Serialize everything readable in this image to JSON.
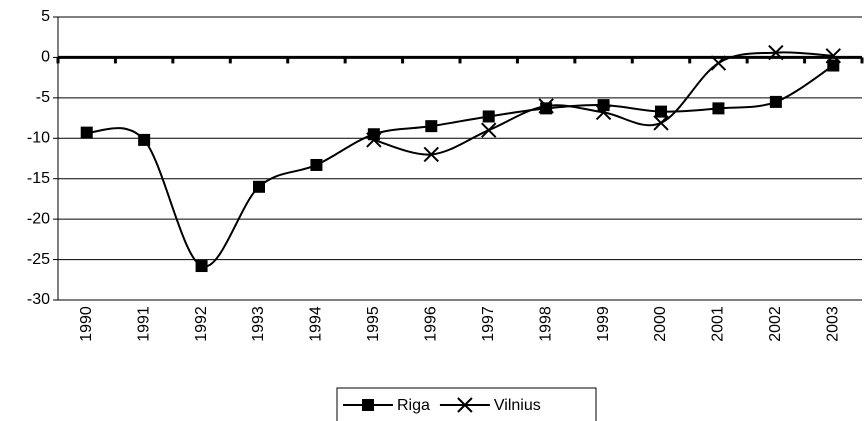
{
  "chart_data": {
    "type": "line",
    "categories": [
      "1990",
      "1991",
      "1992",
      "1993",
      "1994",
      "1995",
      "1996",
      "1997",
      "1998",
      "1999",
      "2000",
      "2001",
      "2002",
      "2003"
    ],
    "series": [
      {
        "name": "Riga",
        "color": "#000000",
        "marker": "square",
        "values": [
          -9.3,
          -10.2,
          -25.8,
          -16,
          -13.3,
          -9.5,
          -8.5,
          -7.3,
          -6.3,
          -5.9,
          -6.7,
          -6.3,
          -5.5,
          -1
        ]
      },
      {
        "name": "Vilnius",
        "color": "#000000",
        "marker": "x",
        "values": [
          null,
          null,
          null,
          null,
          null,
          -10.2,
          -12,
          -9,
          -6,
          -6.8,
          -8.1,
          -0.7,
          0.6,
          0.2
        ]
      }
    ],
    "ylim": [
      -30,
      5
    ],
    "yticks": [
      -30,
      -25,
      -20,
      -15,
      -10,
      -5,
      0,
      5
    ],
    "grid": true,
    "smooth": true,
    "legend": "bottom"
  }
}
